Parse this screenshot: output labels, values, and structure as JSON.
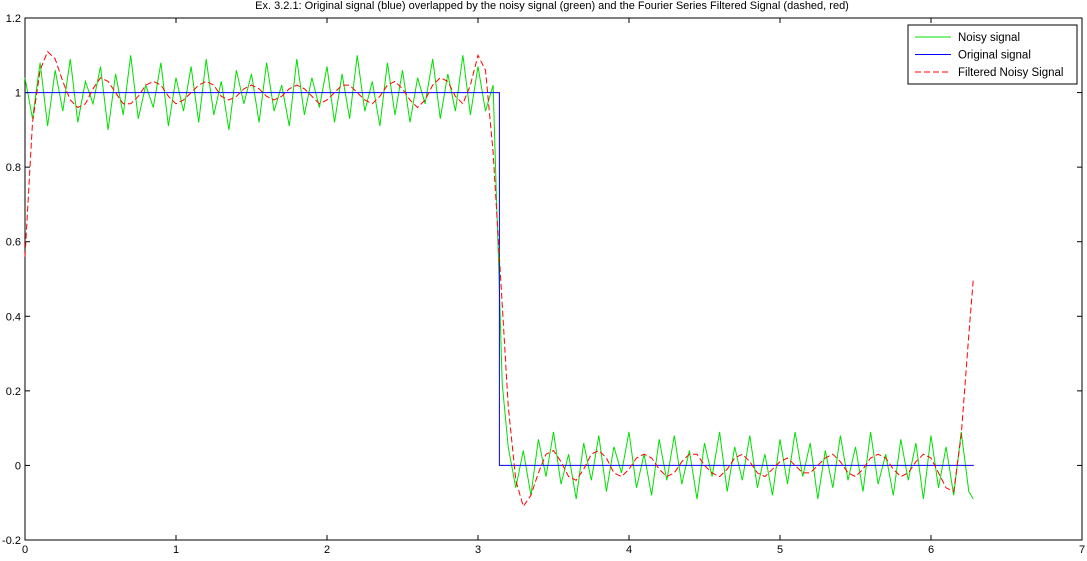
{
  "chart_data": {
    "type": "line",
    "title": "Ex. 3.2.1: Original signal (blue) overlapped by the noisy signal (green) and the Fourier Series Filtered Signal (dashed, red)",
    "xlabel": "",
    "ylabel": "",
    "xlim": [
      0,
      7
    ],
    "ylim": [
      -0.2,
      1.2
    ],
    "xticks": [
      0,
      1,
      2,
      3,
      4,
      5,
      6,
      7
    ],
    "yticks": [
      -0.2,
      0,
      0.2,
      0.4,
      0.6,
      0.8,
      1,
      1.2
    ],
    "xtick_labels": [
      "0",
      "1",
      "2",
      "3",
      "4",
      "5",
      "6",
      "7"
    ],
    "ytick_labels": [
      "-0.2",
      "0",
      "0.2",
      "0.4",
      "0.6",
      "0.8",
      "1",
      "1.2"
    ],
    "grid": false,
    "legend_position": "top-right",
    "series": [
      {
        "name": "Noisy signal",
        "color": "#00e000",
        "style": "solid",
        "x": [
          0,
          0.05,
          0.1,
          0.15,
          0.2,
          0.25,
          0.3,
          0.35,
          0.4,
          0.45,
          0.5,
          0.55,
          0.6,
          0.65,
          0.7,
          0.75,
          0.8,
          0.85,
          0.9,
          0.95,
          1.0,
          1.05,
          1.1,
          1.15,
          1.2,
          1.25,
          1.3,
          1.35,
          1.4,
          1.45,
          1.5,
          1.55,
          1.6,
          1.65,
          1.7,
          1.75,
          1.8,
          1.85,
          1.9,
          1.95,
          2.0,
          2.05,
          2.1,
          2.15,
          2.2,
          2.25,
          2.3,
          2.35,
          2.4,
          2.45,
          2.5,
          2.55,
          2.6,
          2.65,
          2.7,
          2.75,
          2.8,
          2.85,
          2.9,
          2.95,
          3.0,
          3.05,
          3.1,
          3.12,
          3.14,
          3.16,
          3.2,
          3.25,
          3.3,
          3.35,
          3.4,
          3.45,
          3.5,
          3.55,
          3.6,
          3.65,
          3.7,
          3.75,
          3.8,
          3.85,
          3.9,
          3.95,
          4.0,
          4.05,
          4.1,
          4.15,
          4.2,
          4.25,
          4.3,
          4.35,
          4.4,
          4.45,
          4.5,
          4.55,
          4.6,
          4.65,
          4.7,
          4.75,
          4.8,
          4.85,
          4.9,
          4.95,
          5.0,
          5.05,
          5.1,
          5.15,
          5.2,
          5.25,
          5.3,
          5.35,
          5.4,
          5.45,
          5.5,
          5.55,
          5.6,
          5.65,
          5.7,
          5.75,
          5.8,
          5.85,
          5.9,
          5.95,
          6.0,
          6.05,
          6.1,
          6.15,
          6.2,
          6.25,
          6.28
        ],
        "y": [
          1.04,
          0.93,
          1.08,
          0.91,
          1.06,
          0.95,
          1.09,
          0.92,
          1.03,
          0.97,
          1.07,
          0.9,
          1.05,
          0.94,
          1.1,
          0.93,
          1.02,
          0.96,
          1.08,
          0.91,
          1.04,
          0.95,
          1.07,
          0.92,
          1.09,
          0.94,
          1.03,
          0.9,
          1.06,
          0.97,
          1.05,
          0.92,
          1.08,
          0.95,
          1.02,
          0.91,
          1.09,
          0.94,
          1.04,
          0.96,
          1.07,
          0.92,
          1.05,
          0.93,
          1.1,
          0.95,
          1.03,
          0.91,
          1.08,
          0.94,
          1.06,
          0.92,
          1.04,
          0.97,
          1.09,
          0.93,
          1.05,
          0.95,
          1.1,
          0.94,
          1.07,
          0.95,
          1.02,
          0.75,
          0.5,
          0.22,
          0.05,
          -0.06,
          0.04,
          -0.08,
          0.07,
          -0.03,
          0.09,
          -0.05,
          0.03,
          -0.09,
          0.06,
          -0.04,
          0.08,
          -0.07,
          0.05,
          -0.02,
          0.09,
          -0.06,
          0.03,
          -0.08,
          0.07,
          -0.04,
          0.08,
          -0.05,
          0.04,
          -0.09,
          0.06,
          -0.03,
          0.09,
          -0.07,
          0.05,
          -0.04,
          0.08,
          -0.06,
          0.03,
          -0.08,
          0.07,
          -0.05,
          0.09,
          -0.03,
          0.06,
          -0.09,
          0.04,
          -0.06,
          0.08,
          -0.04,
          0.05,
          -0.07,
          0.09,
          -0.05,
          0.03,
          -0.08,
          0.07,
          -0.04,
          0.06,
          -0.09,
          0.08,
          -0.06,
          0.05,
          -0.08,
          0.09,
          -0.07,
          -0.09
        ]
      },
      {
        "name": "Original signal",
        "color": "#0000ff",
        "style": "solid",
        "x": [
          0,
          3.1416,
          3.1416,
          6.2832
        ],
        "y": [
          1,
          1,
          0,
          0
        ]
      },
      {
        "name": "Filtered Noisy Signal",
        "color": "#ff0000",
        "style": "dashed",
        "x": [
          0,
          0.05,
          0.1,
          0.15,
          0.2,
          0.25,
          0.3,
          0.35,
          0.4,
          0.45,
          0.5,
          0.55,
          0.6,
          0.65,
          0.7,
          0.75,
          0.8,
          0.85,
          0.9,
          0.95,
          1.0,
          1.05,
          1.1,
          1.15,
          1.2,
          1.25,
          1.3,
          1.35,
          1.4,
          1.45,
          1.5,
          1.55,
          1.6,
          1.65,
          1.7,
          1.75,
          1.8,
          1.85,
          1.9,
          1.95,
          2.0,
          2.05,
          2.1,
          2.15,
          2.2,
          2.25,
          2.3,
          2.35,
          2.4,
          2.45,
          2.5,
          2.55,
          2.6,
          2.65,
          2.7,
          2.75,
          2.8,
          2.85,
          2.9,
          2.95,
          3.0,
          3.05,
          3.1,
          3.15,
          3.2,
          3.25,
          3.3,
          3.35,
          3.4,
          3.45,
          3.5,
          3.55,
          3.6,
          3.65,
          3.7,
          3.75,
          3.8,
          3.85,
          3.9,
          3.95,
          4.0,
          4.05,
          4.1,
          4.15,
          4.2,
          4.25,
          4.3,
          4.35,
          4.4,
          4.45,
          4.5,
          4.55,
          4.6,
          4.65,
          4.7,
          4.75,
          4.8,
          4.85,
          4.9,
          4.95,
          5.0,
          5.05,
          5.1,
          5.15,
          5.2,
          5.25,
          5.3,
          5.35,
          5.4,
          5.45,
          5.5,
          5.55,
          5.6,
          5.65,
          5.7,
          5.75,
          5.8,
          5.85,
          5.9,
          5.95,
          6.0,
          6.05,
          6.1,
          6.15,
          6.2,
          6.25,
          6.28
        ],
        "y": [
          0.56,
          0.92,
          1.06,
          1.11,
          1.09,
          1.03,
          0.98,
          0.96,
          0.97,
          1.01,
          1.04,
          1.03,
          1.0,
          0.97,
          0.97,
          0.99,
          1.02,
          1.03,
          1.02,
          0.99,
          0.97,
          0.98,
          1.0,
          1.02,
          1.03,
          1.02,
          0.99,
          0.98,
          0.99,
          1.01,
          1.02,
          1.01,
          0.99,
          0.98,
          0.99,
          1.01,
          1.02,
          1.01,
          0.99,
          0.97,
          0.98,
          1.0,
          1.02,
          1.02,
          1.0,
          0.98,
          0.97,
          0.99,
          1.02,
          1.03,
          1.01,
          0.98,
          0.96,
          0.98,
          1.02,
          1.04,
          1.03,
          0.99,
          0.97,
          1.02,
          1.1,
          1.06,
          0.84,
          0.5,
          0.16,
          -0.04,
          -0.11,
          -0.08,
          -0.02,
          0.03,
          0.04,
          0.01,
          -0.03,
          -0.04,
          -0.01,
          0.03,
          0.04,
          0.02,
          -0.02,
          -0.03,
          -0.01,
          0.02,
          0.03,
          0.02,
          -0.01,
          -0.03,
          -0.02,
          0.01,
          0.03,
          0.03,
          0.0,
          -0.02,
          -0.03,
          -0.01,
          0.02,
          0.03,
          0.01,
          -0.02,
          -0.03,
          -0.01,
          0.01,
          0.02,
          0.0,
          -0.02,
          -0.02,
          0.0,
          0.02,
          0.03,
          0.01,
          -0.02,
          -0.03,
          -0.01,
          0.02,
          0.03,
          0.02,
          -0.01,
          -0.03,
          -0.02,
          0.01,
          0.03,
          0.02,
          -0.02,
          -0.06,
          -0.07,
          0.08,
          0.35,
          0.5
        ]
      }
    ]
  }
}
